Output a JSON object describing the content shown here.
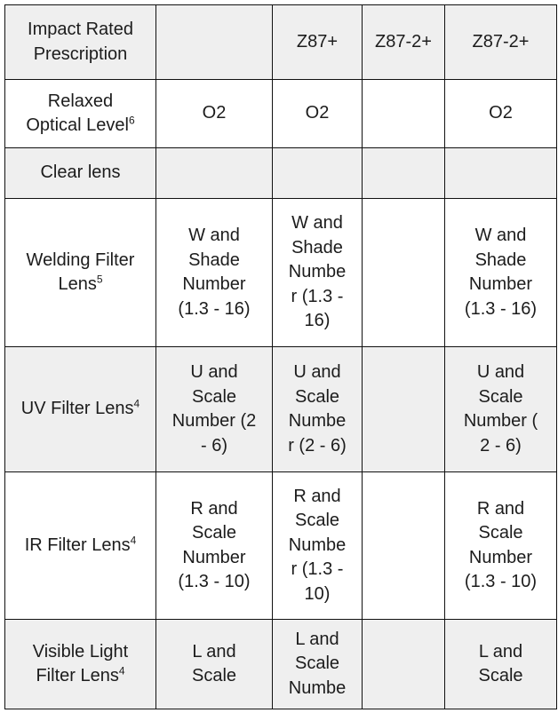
{
  "table": {
    "rows": [
      {
        "label": [
          "Impact Rated",
          "Prescription"
        ],
        "sup": "",
        "cells": [
          [],
          [
            "Z87+"
          ],
          [
            "Z87-2+"
          ],
          [
            "Z87-2+"
          ]
        ]
      },
      {
        "label": [
          "Relaxed",
          "Optical Level"
        ],
        "sup": "6",
        "cells": [
          [
            "O2"
          ],
          [
            "O2"
          ],
          [],
          [
            "O2"
          ]
        ]
      },
      {
        "label": [
          "Clear lens"
        ],
        "sup": "",
        "cells": [
          [],
          [],
          [],
          []
        ]
      },
      {
        "label": [
          "Welding Filter",
          "Lens"
        ],
        "sup": "5",
        "cells": [
          [
            "W and",
            "Shade",
            "Number",
            "(1.3 - 16)"
          ],
          [
            "W and",
            "Shade",
            "Numbe",
            "r (1.3 -",
            "16)"
          ],
          [],
          [
            "W and",
            "Shade",
            "Number",
            "(1.3 - 16)"
          ]
        ]
      },
      {
        "label": [
          "UV Filter Lens"
        ],
        "sup": "4",
        "cells": [
          [
            "U and",
            "Scale",
            "Number (2",
            "- 6)"
          ],
          [
            "U and",
            "Scale",
            "Numbe",
            "r (2 - 6)"
          ],
          [],
          [
            "U and",
            "Scale",
            "Number (",
            "2 - 6)"
          ]
        ]
      },
      {
        "label": [
          "IR Filter Lens"
        ],
        "sup": "4",
        "cells": [
          [
            "R and",
            "Scale",
            "Number",
            "(1.3 - 10)"
          ],
          [
            "R and",
            "Scale",
            "Numbe",
            "r (1.3 -",
            "10)"
          ],
          [],
          [
            "R and",
            "Scale",
            "Number",
            "(1.3 - 10)"
          ]
        ]
      },
      {
        "label": [
          "Visible Light",
          "Filter Lens"
        ],
        "sup": "4",
        "cells": [
          [
            "L and",
            "Scale"
          ],
          [
            "L and",
            "Scale",
            "Numbe"
          ],
          [],
          [
            "L and",
            "Scale"
          ]
        ]
      }
    ]
  }
}
